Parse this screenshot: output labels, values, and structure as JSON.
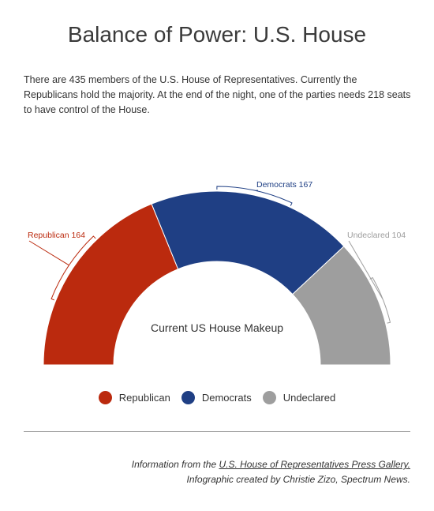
{
  "header": {
    "title": "Balance of Power: U.S. House",
    "intro": "There are 435 members of the U.S. House of Representatives. Currently the Republicans hold the majority. At the end of the night, one of the parties needs 218 seats to have control of the House."
  },
  "chart_data": {
    "type": "pie",
    "variant": "semi-donut",
    "center_label": "Current US House Makeup",
    "categories": [
      "Republican",
      "Democrats",
      "Undeclared"
    ],
    "values": [
      164,
      167,
      104
    ],
    "slice_labels": [
      "Republican 164",
      "Democrats 167",
      "Undeclared 104"
    ],
    "colors": [
      "#bb2a0e",
      "#1f3f84",
      "#9e9e9e"
    ],
    "legend_position": "bottom"
  },
  "footer": {
    "source_prefix": "Information from the ",
    "source_link": "U.S. House of Representatives Press Gallery.",
    "credit": "Infographic created by Christie Zizo, Spectrum News."
  }
}
